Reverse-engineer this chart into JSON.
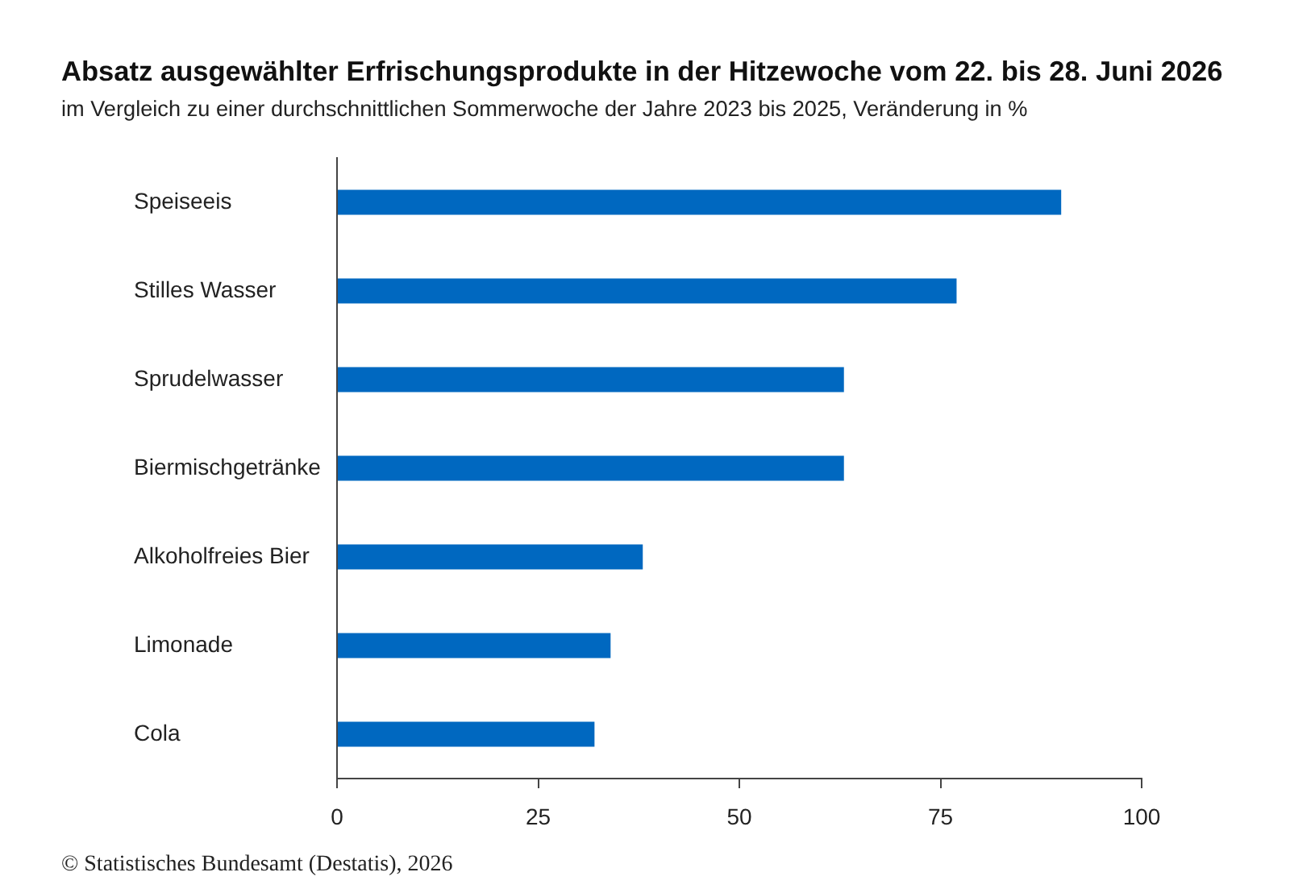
{
  "chart_data": {
    "type": "bar",
    "orientation": "horizontal",
    "title": "Absatz ausgewählter Erfrischungsprodukte in der Hitzewoche vom 22. bis 28. Juni 2026",
    "subtitle": "im Vergleich zu einer durchschnittlichen Sommerwoche der Jahre 2023 bis 2025, Veränderung in %",
    "categories": [
      "Speiseeis",
      "Stilles Wasser",
      "Sprudelwasser",
      "Biermischgetränke",
      "Alkoholfreies Bier",
      "Limonade",
      "Cola"
    ],
    "values": [
      90,
      77,
      63,
      63,
      38,
      34,
      32
    ],
    "color": "#0068c0",
    "xlim": [
      0,
      100
    ],
    "xticks": [
      0,
      25,
      50,
      75,
      100
    ],
    "grid": false,
    "legend": false,
    "annotations": [
      "© Statistisches Bundesamt (Destatis), 2026"
    ]
  }
}
